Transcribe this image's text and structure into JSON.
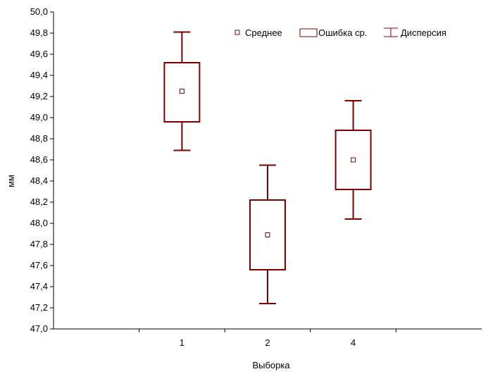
{
  "chart_data": {
    "type": "boxplot",
    "xlabel": "Выборка",
    "ylabel": "мм",
    "categories": [
      "1",
      "2",
      "4"
    ],
    "ylim": [
      47.0,
      50.0
    ],
    "yticks": [
      "47,0",
      "47,2",
      "47,4",
      "47,6",
      "47,8",
      "48,0",
      "48,2",
      "48,4",
      "48,6",
      "48,8",
      "49,0",
      "49,2",
      "49,4",
      "49,6",
      "49,8",
      "50,0"
    ],
    "legend": {
      "placement": "top-right",
      "mean_label": "Среднее",
      "box_label": "Ошибка ср.",
      "whisker_label": "Дисперсия"
    },
    "series": [
      {
        "category": "1",
        "mean": 49.25,
        "box_low": 48.96,
        "box_high": 49.52,
        "whisker_low": 48.69,
        "whisker_high": 49.81
      },
      {
        "category": "2",
        "mean": 47.89,
        "box_low": 47.56,
        "box_high": 48.22,
        "whisker_low": 47.24,
        "whisker_high": 48.55
      },
      {
        "category": "4",
        "mean": 48.6,
        "box_low": 48.32,
        "box_high": 48.88,
        "whisker_low": 48.04,
        "whisker_high": 49.16
      }
    ],
    "colors": {
      "series": "#7f0000",
      "axis": "#000000"
    }
  }
}
